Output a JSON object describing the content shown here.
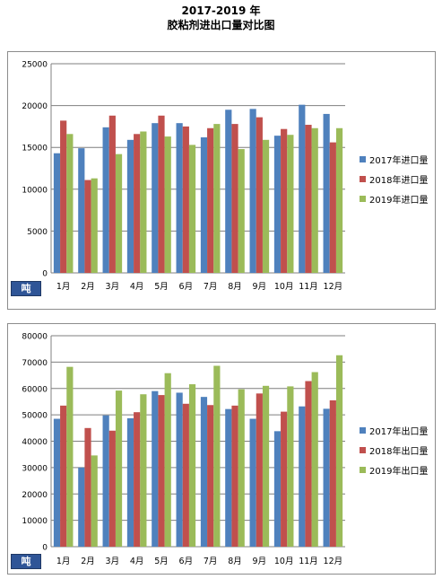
{
  "header": {
    "title_line1": "2017-2019 年",
    "title_line2": "胶粘剂进出口量对比图"
  },
  "colors": {
    "s2017": "#4f81bd",
    "s2018": "#c0504d",
    "s2019": "#9bbb59"
  },
  "chart_data": [
    {
      "type": "bar",
      "unit_label": "吨",
      "categories": [
        "1月",
        "2月",
        "3月",
        "4月",
        "5月",
        "6月",
        "7月",
        "8月",
        "9月",
        "10月",
        "11月",
        "12月"
      ],
      "ylim": [
        0,
        25000
      ],
      "yticks": [
        "0",
        "5000",
        "10000",
        "15000",
        "20000",
        "25000"
      ],
      "grid": true,
      "legend_position": "right",
      "series": [
        {
          "name": "2017年进口量",
          "values": [
            14300,
            14900,
            17400,
            15900,
            17900,
            17900,
            16200,
            19500,
            19600,
            16400,
            20100,
            19000
          ]
        },
        {
          "name": "2018年进口量",
          "values": [
            18200,
            11100,
            18800,
            16600,
            18800,
            17500,
            17300,
            17800,
            18600,
            17200,
            17700,
            15600
          ]
        },
        {
          "name": "2019年进口量",
          "values": [
            16600,
            11300,
            14200,
            16900,
            16300,
            15300,
            17800,
            14800,
            15900,
            16500,
            17300,
            17300
          ]
        }
      ]
    },
    {
      "type": "bar",
      "unit_label": "吨",
      "categories": [
        "1月",
        "2月",
        "3月",
        "4月",
        "5月",
        "6月",
        "7月",
        "8月",
        "9月",
        "10月",
        "11月",
        "12月"
      ],
      "ylim": [
        0,
        80000
      ],
      "yticks": [
        "0",
        "10000",
        "20000",
        "30000",
        "40000",
        "50000",
        "60000",
        "70000",
        "80000"
      ],
      "grid": true,
      "legend_position": "right",
      "series": [
        {
          "name": "2017年出口量",
          "values": [
            48500,
            30000,
            49800,
            48700,
            59000,
            58400,
            56800,
            52200,
            48500,
            43800,
            53200,
            52300
          ]
        },
        {
          "name": "2018年出口量",
          "values": [
            53500,
            45000,
            44000,
            51000,
            57500,
            54200,
            53700,
            53500,
            58100,
            51200,
            62800,
            55500
          ]
        },
        {
          "name": "2019年出口量",
          "values": [
            68200,
            34600,
            59200,
            57800,
            65800,
            61600,
            68600,
            59700,
            61000,
            60800,
            66200,
            72600
          ]
        }
      ]
    }
  ]
}
